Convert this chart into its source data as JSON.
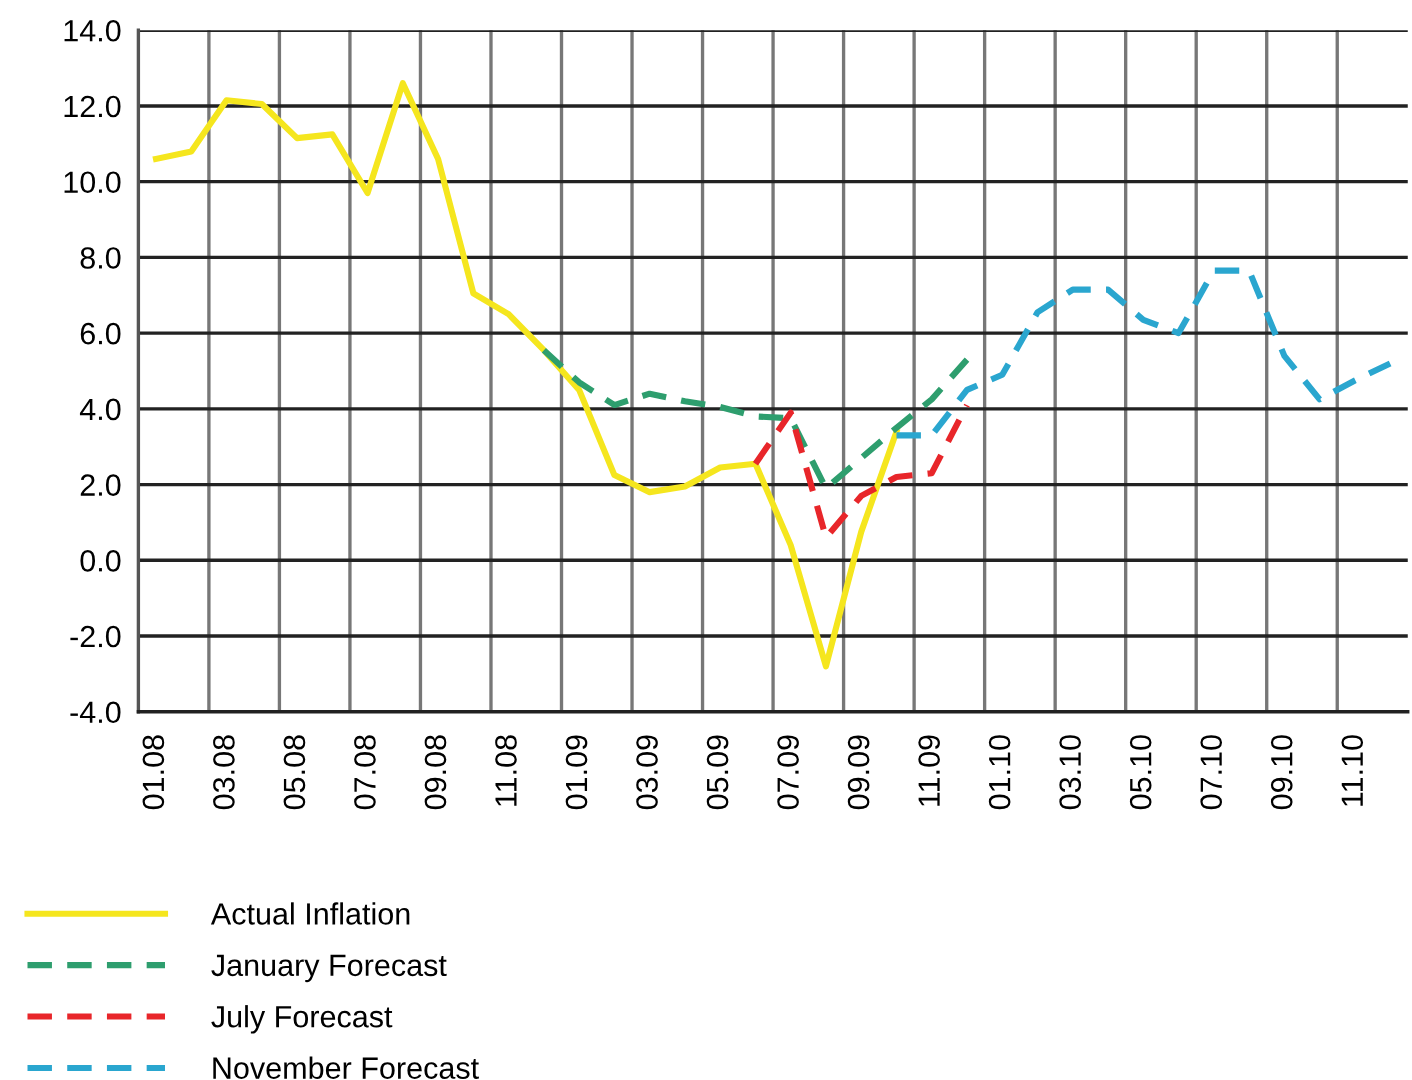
{
  "chart_data": {
    "type": "line",
    "categories": [
      "01.08",
      null,
      "03.08",
      null,
      "05.08",
      null,
      "07.08",
      null,
      "09.08",
      null,
      "11.08",
      null,
      "01.09",
      null,
      "03.09",
      null,
      "05.09",
      null,
      "07.09",
      null,
      "09.09",
      null,
      "11.09",
      null,
      "01.10",
      null,
      "03.10",
      null,
      "05.10",
      null,
      "07.10",
      null,
      "09.10",
      null,
      "11.10",
      null
    ],
    "series": [
      {
        "name": "Actual Inflation",
        "color": "#f5e61e",
        "line_style": "solid",
        "values": [
          10.6,
          10.8,
          12.15,
          12.05,
          11.15,
          11.25,
          9.7,
          12.6,
          10.6,
          7.05,
          6.5,
          5.55,
          4.5,
          2.25,
          1.8,
          1.95,
          2.45,
          2.55,
          0.4,
          -2.8,
          0.75,
          3.4,
          null,
          null,
          null,
          null,
          null,
          null,
          null,
          null,
          null,
          null,
          null,
          null,
          null,
          null
        ]
      },
      {
        "name": "January Forecast",
        "color": "#2e9e6e",
        "line_style": "dashed",
        "values": [
          null,
          null,
          null,
          null,
          null,
          null,
          null,
          null,
          null,
          null,
          null,
          5.55,
          4.7,
          4.1,
          4.4,
          4.2,
          4.05,
          3.8,
          3.75,
          1.9,
          2.7,
          3.5,
          4.25,
          5.3,
          null,
          null,
          null,
          null,
          null,
          null,
          null,
          null,
          null,
          null,
          null,
          null
        ]
      },
      {
        "name": "July Forecast",
        "color": "#e8262a",
        "line_style": "dashed",
        "values": [
          null,
          null,
          null,
          null,
          null,
          null,
          null,
          null,
          null,
          null,
          null,
          null,
          null,
          null,
          null,
          null,
          null,
          2.55,
          3.9,
          0.6,
          1.7,
          2.2,
          2.3,
          4.1,
          null,
          null,
          null,
          null,
          null,
          null,
          null,
          null,
          null,
          null,
          null,
          null
        ]
      },
      {
        "name": "November Forecast",
        "color": "#2aa6cf",
        "line_style": "dashed",
        "values": [
          null,
          null,
          null,
          null,
          null,
          null,
          null,
          null,
          null,
          null,
          null,
          null,
          null,
          null,
          null,
          null,
          null,
          null,
          null,
          null,
          null,
          3.3,
          3.3,
          4.5,
          4.9,
          6.55,
          7.15,
          7.15,
          6.35,
          6.0,
          7.65,
          7.65,
          5.4,
          4.25,
          4.75,
          5.2
        ]
      }
    ],
    "ylim": [
      -4,
      14
    ],
    "yticks": [
      {
        "value": -4,
        "label": "-4.0"
      },
      {
        "value": -2,
        "label": "-2.0"
      },
      {
        "value": 0,
        "label": "0.0"
      },
      {
        "value": 2,
        "label": "2.0"
      },
      {
        "value": 4,
        "label": "4.0"
      },
      {
        "value": 6,
        "label": "6.0"
      },
      {
        "value": 8,
        "label": "8.0"
      },
      {
        "value": 10,
        "label": "10.0"
      },
      {
        "value": 12,
        "label": "12.0"
      },
      {
        "value": 14,
        "label": "14.0"
      }
    ],
    "grid": true,
    "legend": "bottom left",
    "marker": "none"
  }
}
